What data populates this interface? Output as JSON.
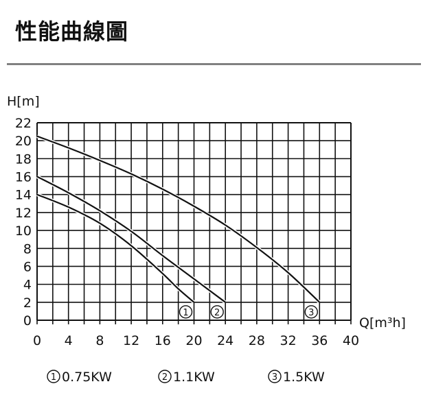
{
  "header": {
    "title": "性能曲線圖"
  },
  "chart_data": {
    "type": "line",
    "title": "性能曲線圖",
    "xlabel": "Q[m³h]",
    "ylabel": "H[m]",
    "xlim": [
      0,
      40
    ],
    "ylim": [
      0,
      22
    ],
    "x_ticks": [
      "0",
      "4",
      "8",
      "12",
      "16",
      "20",
      "24",
      "28",
      "32",
      "36",
      "40"
    ],
    "y_ticks": [
      "0",
      "2",
      "4",
      "6",
      "8",
      "10",
      "12",
      "14",
      "16",
      "18",
      "20",
      "22"
    ],
    "grid": true,
    "legend_position": "bottom",
    "series": [
      {
        "name": "0.75KW",
        "marker": "①",
        "x": [
          0,
          4,
          8,
          12,
          16,
          18,
          20
        ],
        "y": [
          14,
          12.6,
          10.8,
          8.3,
          5.2,
          3.5,
          2
        ]
      },
      {
        "name": "1.1KW",
        "marker": "②",
        "x": [
          0,
          4,
          8,
          12,
          16,
          20,
          24
        ],
        "y": [
          16,
          14.2,
          12.2,
          9.9,
          7.2,
          4.6,
          2
        ]
      },
      {
        "name": "1.5KW",
        "marker": "③",
        "x": [
          0,
          4,
          8,
          12,
          16,
          20,
          24,
          28,
          32,
          36
        ],
        "y": [
          20.5,
          19.2,
          17.8,
          16.3,
          14.6,
          12.7,
          10.6,
          8.1,
          5.3,
          2
        ]
      }
    ],
    "legend": [
      {
        "marker": "①",
        "label": "0.75KW"
      },
      {
        "marker": "②",
        "label": "1.1KW"
      },
      {
        "marker": "③",
        "label": "1.5KW"
      }
    ]
  }
}
